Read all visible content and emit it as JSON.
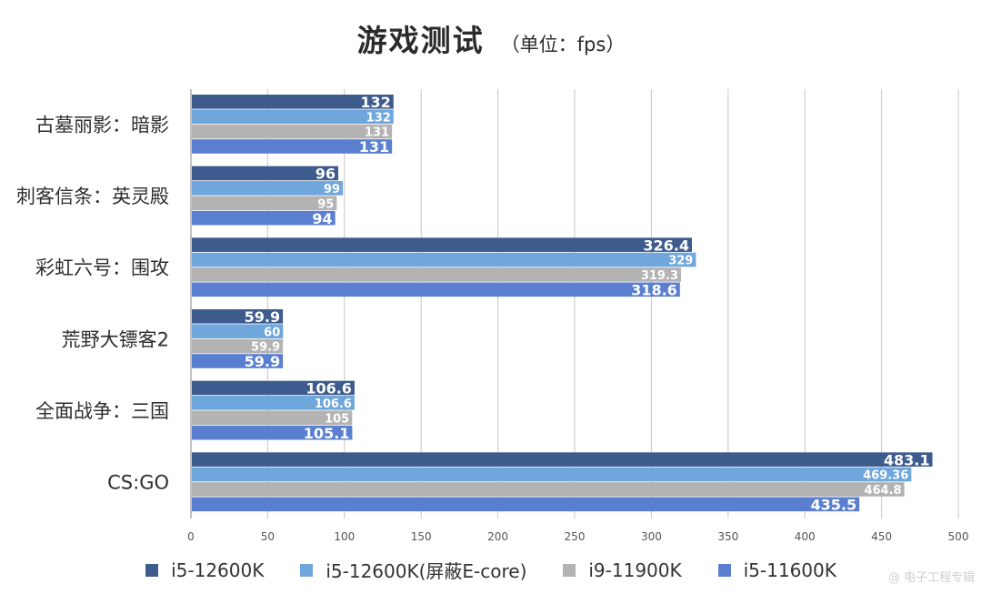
{
  "chart_data": {
    "type": "bar",
    "orientation": "horizontal",
    "title": "游戏测试",
    "subtitle": "（单位：fps）",
    "categories": [
      "古墓丽影：暗影",
      "刺客信条：英灵殿",
      "彩虹六号：围攻",
      "荒野大镖客2",
      "全面战争：三国",
      "CS:GO"
    ],
    "series": [
      {
        "name": "i5-12600K",
        "color": "#3e5b8e",
        "values": [
          132,
          96,
          326.4,
          59.9,
          106.6,
          483.1
        ],
        "labels": [
          "132",
          "96",
          "326.4",
          "59.9",
          "106.6",
          "483.1"
        ]
      },
      {
        "name": "i5-12600K(屏蔽E-core)",
        "color": "#6fa6dc",
        "values": [
          132,
          99,
          329,
          60,
          106.6,
          469.36
        ],
        "labels": [
          "132",
          "99",
          "329",
          "60",
          "106.6",
          "469.36"
        ]
      },
      {
        "name": "i9-11900K",
        "color": "#b3b3b3",
        "values": [
          131,
          95,
          319.3,
          59.9,
          105,
          464.8
        ],
        "labels": [
          "131",
          "95",
          "319.3",
          "59.9",
          "105",
          "464.8"
        ]
      },
      {
        "name": "i5-11600K",
        "color": "#5b7fd0",
        "values": [
          131,
          94,
          318.6,
          59.9,
          105.1,
          435.5
        ],
        "labels": [
          "131",
          "94",
          "318.6",
          "59.9",
          "105.1",
          "435.5"
        ]
      }
    ],
    "xlim": [
      0,
      500
    ],
    "xticks": [
      "0",
      "50",
      "100",
      "150",
      "200",
      "250",
      "300",
      "350",
      "400",
      "450",
      "500"
    ],
    "grid": "vertical",
    "legend_position": "bottom"
  },
  "watermark": "@ 电子工程专辑"
}
